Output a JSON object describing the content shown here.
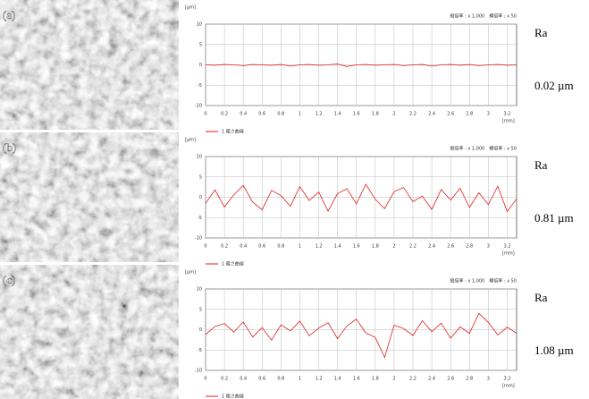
{
  "chart_data": [
    {
      "type": "line",
      "panel": "(a)",
      "header": "縦倍率 : x 1,000　横倍率 : x 50",
      "y_unit": "[µm]",
      "x_unit": "[mm]",
      "ra_label": "Ra",
      "ra_value": "0.02 µm",
      "x": [
        0,
        0.1,
        0.2,
        0.3,
        0.4,
        0.5,
        0.6,
        0.7,
        0.8,
        0.9,
        1,
        1.1,
        1.2,
        1.3,
        1.4,
        1.5,
        1.6,
        1.7,
        1.8,
        1.9,
        2,
        2.1,
        2.2,
        2.3,
        2.4,
        2.5,
        2.6,
        2.7,
        2.8,
        2.9,
        3,
        3.1,
        3.2,
        3.3
      ],
      "series": [
        {
          "name": "1 粗さ曲線",
          "color": "#e02020",
          "values": [
            0,
            -0.1,
            0.1,
            0,
            -0.2,
            0.1,
            0,
            -0.1,
            0.1,
            -0.3,
            0,
            0.1,
            -0.1,
            0,
            0.2,
            -0.4,
            0,
            0.1,
            -0.1,
            0,
            0.1,
            -0.2,
            0,
            0.1,
            -0.3,
            0,
            0.1,
            -0.1,
            0.1,
            -0.2,
            0,
            0.1,
            -0.1,
            0
          ]
        }
      ],
      "xlim": [
        0,
        3.3
      ],
      "ylim": [
        -10,
        10
      ],
      "xticks": [
        0,
        0.2,
        0.4,
        0.6,
        0.8,
        1,
        1.2,
        1.4,
        1.6,
        1.8,
        2,
        2.2,
        2.4,
        2.6,
        2.8,
        3,
        3.2
      ],
      "yticks": [
        -10,
        -5,
        0,
        5,
        10
      ],
      "grid": true
    },
    {
      "type": "line",
      "panel": "(b)",
      "header": "縦倍率 : x 1,000　横倍率 : x 50",
      "y_unit": "[µm]",
      "x_unit": "[mm]",
      "ra_label": "Ra",
      "ra_value": "0.81 µm",
      "x": [
        0,
        0.1,
        0.2,
        0.3,
        0.4,
        0.5,
        0.6,
        0.7,
        0.8,
        0.9,
        1,
        1.1,
        1.2,
        1.3,
        1.4,
        1.5,
        1.6,
        1.7,
        1.8,
        1.9,
        2,
        2.1,
        2.2,
        2.3,
        2.4,
        2.5,
        2.6,
        2.7,
        2.8,
        2.9,
        3,
        3.1,
        3.2,
        3.3
      ],
      "series": [
        {
          "name": "1 粗さ曲線",
          "color": "#e02020",
          "values": [
            -1.5,
            1.8,
            -2.4,
            0.6,
            2.9,
            -1.2,
            -3.1,
            1.7,
            0.4,
            -2.2,
            2.6,
            -0.8,
            1.3,
            -3.4,
            0.9,
            2.1,
            -1.6,
            3.2,
            -0.5,
            -2.8,
            1.4,
            2.4,
            -1.1,
            0.3,
            -3,
            1.9,
            -0.7,
            2.2,
            -2.5,
            1.1,
            -1.8,
            2.7,
            -3.5,
            -0.4
          ]
        }
      ],
      "xlim": [
        0,
        3.3
      ],
      "ylim": [
        -10,
        10
      ],
      "xticks": [
        0,
        0.2,
        0.4,
        0.6,
        0.8,
        1,
        1.2,
        1.4,
        1.6,
        1.8,
        2,
        2.2,
        2.4,
        2.6,
        2.8,
        3,
        3.2
      ],
      "yticks": [
        -10,
        -5,
        0,
        5,
        10
      ],
      "grid": true
    },
    {
      "type": "line",
      "panel": "(c)",
      "header": "縦倍率 : x 1,000　横倍率 : x 50",
      "y_unit": "[µm]",
      "x_unit": "[mm]",
      "ra_label": "Ra",
      "ra_value": "1.08 µm",
      "x": [
        0,
        0.1,
        0.2,
        0.3,
        0.4,
        0.5,
        0.6,
        0.7,
        0.8,
        0.9,
        1,
        1.1,
        1.2,
        1.3,
        1.4,
        1.5,
        1.6,
        1.7,
        1.8,
        1.9,
        2,
        2.1,
        2.2,
        2.3,
        2.4,
        2.5,
        2.6,
        2.7,
        2.8,
        2.9,
        3,
        3.1,
        3.2,
        3.3
      ],
      "series": [
        {
          "name": "1 粗さ曲線",
          "color": "#e02020",
          "values": [
            -1.2,
            0.8,
            1.5,
            -0.6,
            1.9,
            -1.8,
            0.5,
            -2.6,
            1.2,
            -0.3,
            2.1,
            -1.5,
            0.4,
            1.7,
            -2.2,
            0.9,
            2.6,
            -0.8,
            -1.9,
            -6.8,
            1.1,
            0.3,
            -1.4,
            2.2,
            -0.5,
            1.6,
            -2.1,
            0.7,
            -0.9,
            4,
            1.8,
            -1.3,
            0.6,
            -0.9
          ]
        }
      ],
      "xlim": [
        0,
        3.3
      ],
      "ylim": [
        -10,
        10
      ],
      "xticks": [
        0,
        0.2,
        0.4,
        0.6,
        0.8,
        1,
        1.2,
        1.4,
        1.6,
        1.8,
        2,
        2.2,
        2.4,
        2.6,
        2.8,
        3,
        3.2
      ],
      "yticks": [
        -10,
        -5,
        0,
        5,
        10
      ],
      "grid": true
    }
  ]
}
